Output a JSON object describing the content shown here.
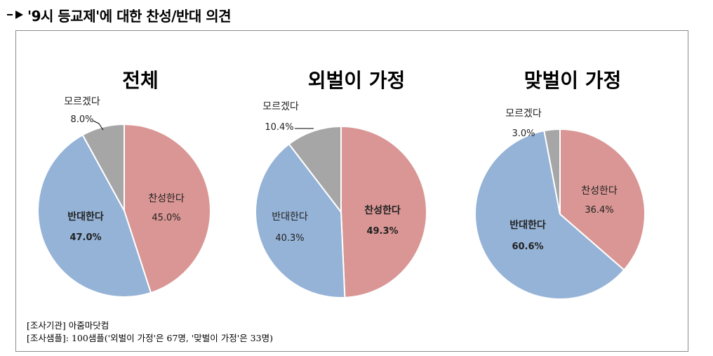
{
  "header": {
    "title": "'9시 등교제'에 대한 찬성/반대 의견"
  },
  "notes": {
    "agency": "[조사기관] 아줌마닷컴",
    "sample": "[조사샘플]: 100샘플('외벌이 가정'은 67명, '맞벌이 가정'은 33명)"
  },
  "colors": {
    "agree": "#d99694",
    "oppose": "#95b3d7",
    "unknown": "#a6a6a6"
  },
  "chart_data": [
    {
      "type": "pie",
      "title": "전체",
      "slices": [
        {
          "label": "찬성한다",
          "value": 45.0,
          "value_label": "45.0%",
          "color": "#d99694",
          "bold": false
        },
        {
          "label": "반대한다",
          "value": 47.0,
          "value_label": "47.0%",
          "color": "#95b3d7",
          "bold": true
        },
        {
          "label": "모르겠다",
          "value": 8.0,
          "value_label": "8.0%",
          "color": "#a6a6a6",
          "bold": false
        }
      ]
    },
    {
      "type": "pie",
      "title": "외벌이 가정",
      "slices": [
        {
          "label": "찬성한다",
          "value": 49.3,
          "value_label": "49.3%",
          "color": "#d99694",
          "bold": true
        },
        {
          "label": "반대한다",
          "value": 40.3,
          "value_label": "40.3%",
          "color": "#95b3d7",
          "bold": false
        },
        {
          "label": "모르겠다",
          "value": 10.4,
          "value_label": "10.4%",
          "color": "#a6a6a6",
          "bold": false
        }
      ]
    },
    {
      "type": "pie",
      "title": "맞벌이 가정",
      "slices": [
        {
          "label": "찬성한다",
          "value": 36.4,
          "value_label": "36.4%",
          "color": "#d99694",
          "bold": false
        },
        {
          "label": "반대한다",
          "value": 60.6,
          "value_label": "60.6%",
          "color": "#95b3d7",
          "bold": true
        },
        {
          "label": "모르겠다",
          "value": 3.0,
          "value_label": "3.0%",
          "color": "#a6a6a6",
          "bold": false
        }
      ]
    }
  ]
}
